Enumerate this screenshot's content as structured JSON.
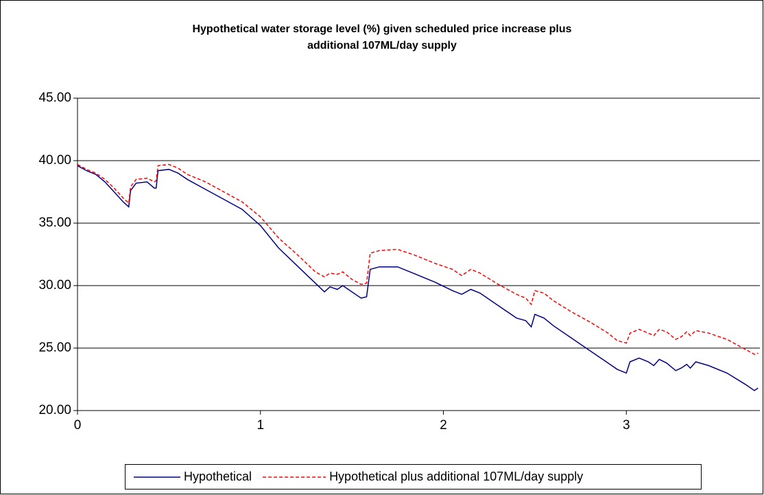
{
  "chart_data": {
    "type": "line",
    "title": [
      "Hypothetical water storage level (%) given scheduled price increase plus",
      "additional 107ML/day supply"
    ],
    "x": [
      0,
      0.05,
      0.1,
      0.15,
      0.2,
      0.25,
      0.28,
      0.29,
      0.32,
      0.38,
      0.42,
      0.43,
      0.44,
      0.5,
      0.55,
      0.6,
      0.7,
      0.8,
      0.9,
      1.0,
      1.1,
      1.2,
      1.3,
      1.35,
      1.38,
      1.42,
      1.45,
      1.5,
      1.55,
      1.58,
      1.6,
      1.65,
      1.75,
      1.85,
      1.95,
      2.05,
      2.1,
      2.15,
      2.2,
      2.3,
      2.4,
      2.45,
      2.48,
      2.5,
      2.55,
      2.6,
      2.7,
      2.8,
      2.9,
      2.95,
      3.0,
      3.02,
      3.07,
      3.12,
      3.15,
      3.18,
      3.22,
      3.27,
      3.3,
      3.33,
      3.35,
      3.38,
      3.45,
      3.55,
      3.65,
      3.7,
      3.72
    ],
    "series": [
      {
        "name": "Hypothetical",
        "color": "#000080",
        "dashed": false,
        "values": [
          39.6,
          39.2,
          38.9,
          38.3,
          37.5,
          36.7,
          36.3,
          37.6,
          38.2,
          38.3,
          37.8,
          37.8,
          39.2,
          39.3,
          39.0,
          38.5,
          37.7,
          36.9,
          36.1,
          34.8,
          33.0,
          31.6,
          30.2,
          29.5,
          29.9,
          29.7,
          30.0,
          29.5,
          29.0,
          29.1,
          31.3,
          31.5,
          31.5,
          30.9,
          30.3,
          29.6,
          29.3,
          29.7,
          29.4,
          28.4,
          27.4,
          27.2,
          26.7,
          27.7,
          27.4,
          26.8,
          25.8,
          24.8,
          23.8,
          23.3,
          23.0,
          23.9,
          24.2,
          23.9,
          23.6,
          24.1,
          23.8,
          23.2,
          23.4,
          23.7,
          23.4,
          23.9,
          23.6,
          23.0,
          22.1,
          21.6,
          21.8
        ]
      },
      {
        "name": "Hypothetical plus additional 107ML/day supply",
        "color": "#ff0000",
        "dashed": true,
        "values": [
          39.7,
          39.3,
          39.0,
          38.5,
          37.8,
          37.0,
          36.6,
          37.9,
          38.5,
          38.6,
          38.3,
          38.4,
          39.6,
          39.7,
          39.4,
          38.9,
          38.3,
          37.5,
          36.7,
          35.5,
          33.8,
          32.5,
          31.1,
          30.7,
          31.0,
          30.9,
          31.1,
          30.5,
          30.1,
          30.2,
          32.6,
          32.8,
          32.9,
          32.4,
          31.8,
          31.3,
          30.8,
          31.3,
          31.0,
          30.1,
          29.3,
          29.0,
          28.5,
          29.6,
          29.4,
          28.8,
          27.9,
          27.1,
          26.2,
          25.6,
          25.4,
          26.2,
          26.5,
          26.2,
          26.0,
          26.5,
          26.3,
          25.7,
          25.9,
          26.3,
          26.0,
          26.4,
          26.2,
          25.7,
          24.9,
          24.5,
          24.6
        ]
      }
    ],
    "xlim": [
      0,
      3.73
    ],
    "xticks": [
      0,
      1,
      2,
      3
    ],
    "ylim": [
      20,
      45
    ],
    "yticks": [
      {
        "value": 20,
        "label": "20.00"
      },
      {
        "value": 25,
        "label": "25.00"
      },
      {
        "value": 30,
        "label": "30.00"
      },
      {
        "value": 35,
        "label": "35.00"
      },
      {
        "value": 40,
        "label": "40.00"
      },
      {
        "value": 45,
        "label": "45.00"
      }
    ],
    "grid": true,
    "legend": "bottom"
  }
}
